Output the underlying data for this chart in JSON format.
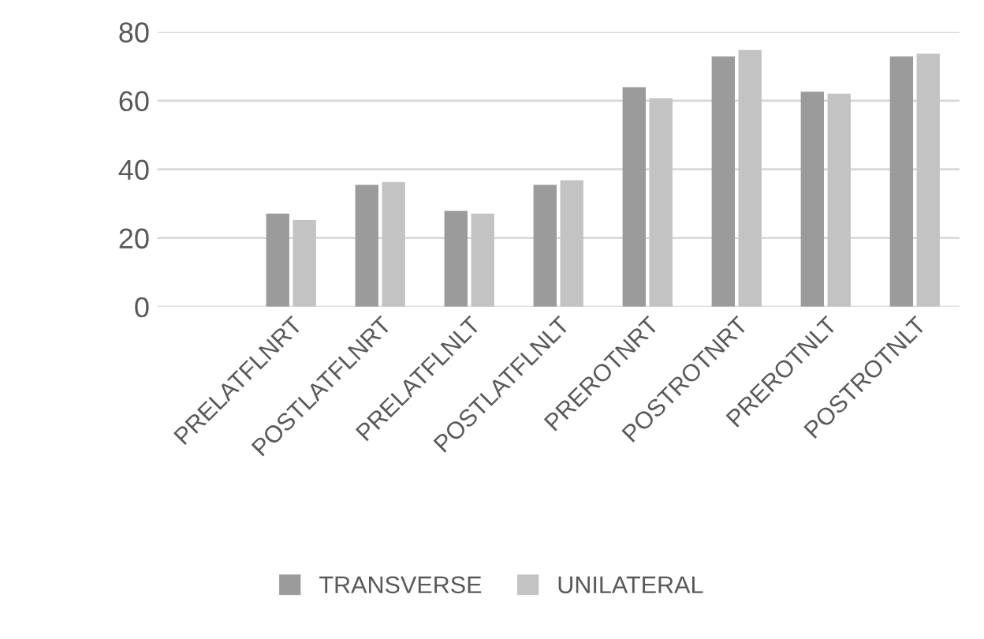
{
  "chart_data": {
    "type": "bar",
    "categories": [
      null,
      "PRELATFLNRT",
      "POSTLATFLNRT",
      "PRELATFLNLT",
      "POSTLATFLNLT",
      "PREROTNRT",
      "POSTROTNRT",
      "PREROTNLT",
      "POSTROTNLT"
    ],
    "series": [
      {
        "name": "TRANSVERSE",
        "color": "#9b9b9b",
        "values": [
          null,
          27.1,
          35.5,
          27.9,
          35.5,
          63.9,
          72.9,
          62.6,
          72.9
        ]
      },
      {
        "name": "UNILATERAL",
        "color": "#c3c3c3",
        "values": [
          null,
          25.2,
          36.3,
          27.1,
          36.8,
          60.7,
          74.8,
          62.0,
          73.7
        ]
      }
    ],
    "ylim": [
      0,
      80
    ],
    "yticks": [
      0,
      20,
      40,
      60,
      80
    ],
    "grid": "y",
    "legend": "bottom"
  }
}
